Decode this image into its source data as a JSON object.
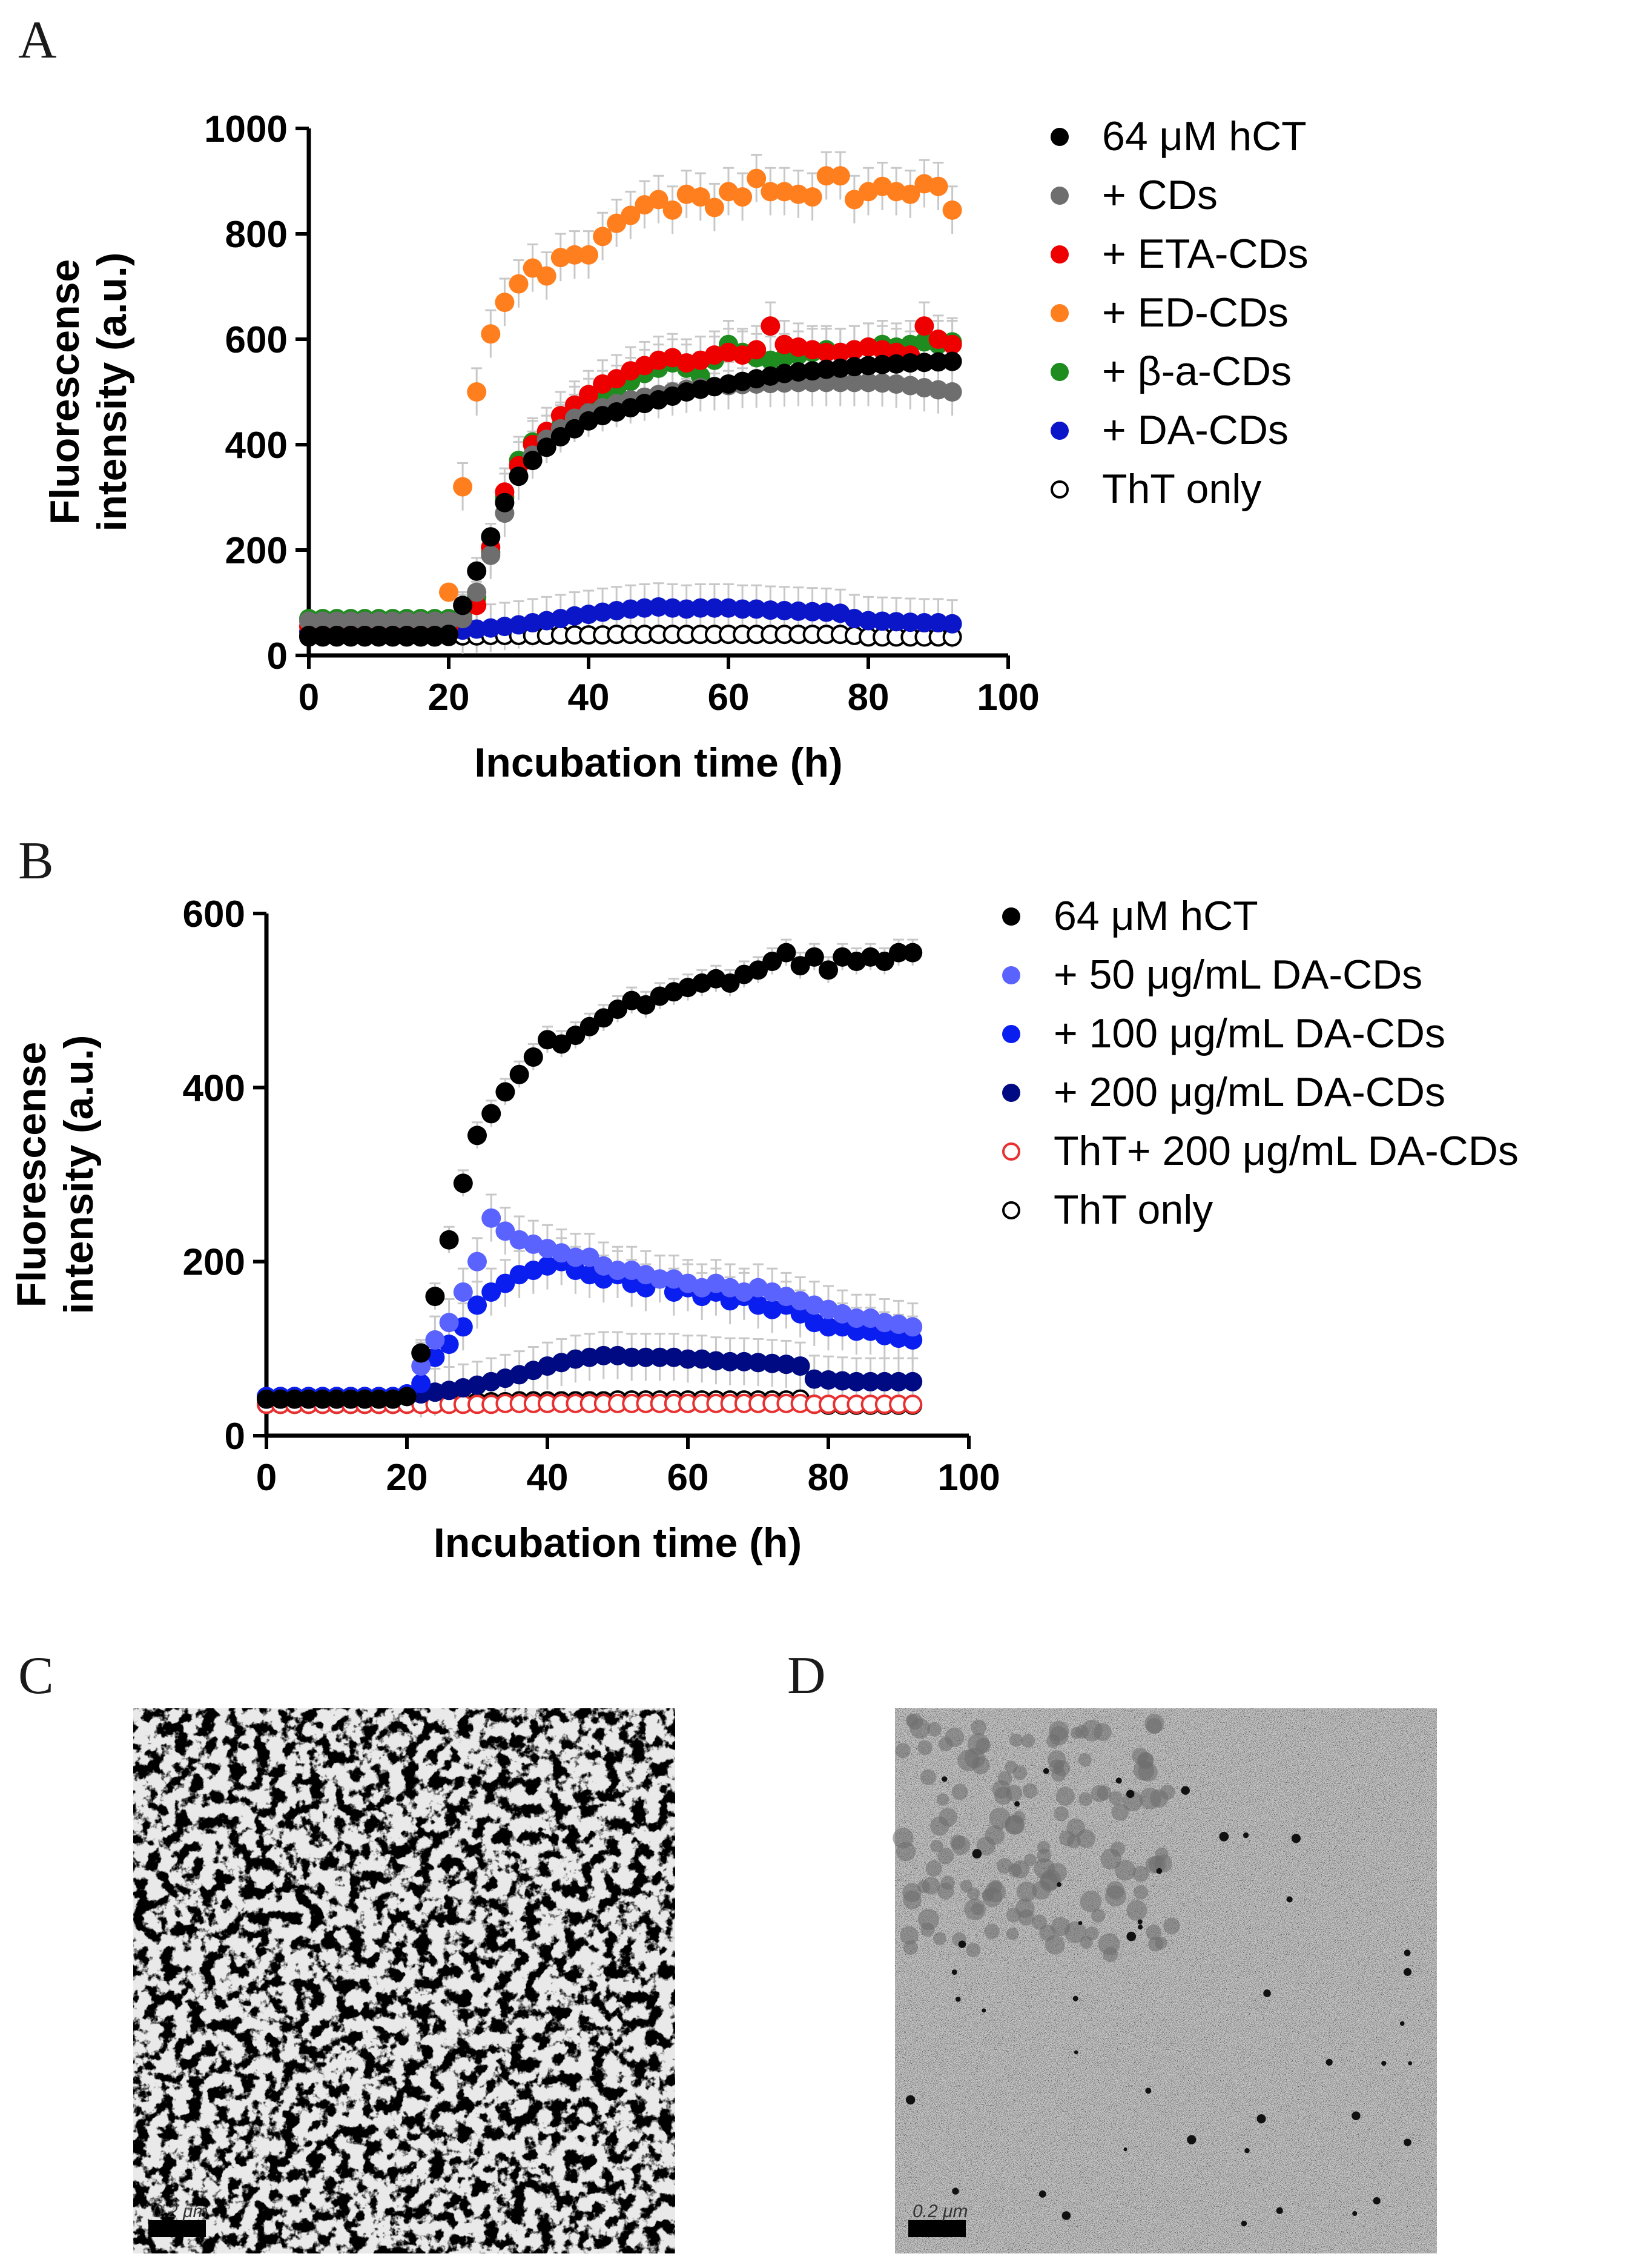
{
  "panels": {
    "a": {
      "letter": "A"
    },
    "b": {
      "letter": "B"
    },
    "c": {
      "letter": "C",
      "scale_label": "0.2 μm"
    },
    "d": {
      "letter": "D",
      "scale_label": "0.2 μm"
    }
  },
  "chart_data": [
    {
      "id": "A",
      "type": "scatter",
      "xlabel": "Incubation time (h)",
      "ylabel_lines": [
        "Fluorescense",
        "intensity (a.u.)"
      ],
      "xlim": [
        0,
        100
      ],
      "ylim": [
        0,
        1000
      ],
      "xticks": [
        0,
        20,
        40,
        60,
        80,
        100
      ],
      "yticks": [
        0,
        200,
        400,
        600,
        800,
        1000
      ],
      "legend_position": "right",
      "x": [
        0,
        2,
        4,
        6,
        8,
        10,
        12,
        14,
        16,
        18,
        20,
        22,
        24,
        26,
        28,
        30,
        32,
        34,
        36,
        38,
        40,
        42,
        44,
        46,
        48,
        50,
        52,
        54,
        56,
        58,
        60,
        62,
        64,
        66,
        68,
        70,
        72,
        74,
        76,
        78,
        80,
        82,
        84,
        86,
        88,
        90,
        92
      ],
      "series": [
        {
          "name": "64 μM hCT",
          "color": "#000000",
          "filled": true,
          "values": [
            38,
            38,
            38,
            38,
            38,
            38,
            38,
            38,
            38,
            38,
            40,
            95,
            160,
            225,
            290,
            340,
            370,
            395,
            415,
            430,
            445,
            455,
            462,
            470,
            478,
            485,
            492,
            500,
            505,
            510,
            515,
            520,
            525,
            530,
            535,
            538,
            540,
            543,
            545,
            548,
            550,
            552,
            553,
            555,
            556,
            557,
            558
          ]
        },
        {
          "name": "+ CDs",
          "color": "#6e6e6e",
          "filled": true,
          "values": [
            65,
            65,
            65,
            65,
            65,
            65,
            65,
            65,
            65,
            65,
            65,
            70,
            120,
            190,
            270,
            340,
            380,
            410,
            430,
            450,
            460,
            470,
            478,
            485,
            490,
            495,
            500,
            505,
            508,
            510,
            512,
            514,
            515,
            516,
            517,
            518,
            518,
            518,
            518,
            518,
            518,
            517,
            515,
            512,
            508,
            504,
            500
          ]
        },
        {
          "name": "+ ETA-CDs",
          "color": "#ee0000",
          "filled": true,
          "values": [
            55,
            55,
            55,
            55,
            55,
            55,
            55,
            55,
            55,
            55,
            55,
            70,
            95,
            205,
            310,
            360,
            400,
            425,
            455,
            475,
            495,
            515,
            525,
            540,
            550,
            560,
            565,
            555,
            560,
            570,
            575,
            570,
            580,
            625,
            590,
            585,
            580,
            575,
            575,
            580,
            585,
            580,
            575,
            570,
            625,
            600,
            590
          ]
        },
        {
          "name": "+ ED-CDs",
          "color": "#ff7f1e",
          "filled": true,
          "values": [
            55,
            55,
            55,
            55,
            55,
            55,
            55,
            55,
            55,
            55,
            120,
            320,
            500,
            610,
            670,
            705,
            735,
            720,
            755,
            760,
            760,
            795,
            820,
            835,
            855,
            865,
            845,
            875,
            870,
            850,
            880,
            870,
            905,
            880,
            880,
            875,
            870,
            910,
            910,
            865,
            880,
            890,
            880,
            875,
            895,
            890,
            845
          ]
        },
        {
          "name": "+ β-a-CDs",
          "color": "#1e8c1e",
          "filled": true,
          "values": [
            70,
            70,
            70,
            70,
            70,
            70,
            70,
            70,
            70,
            70,
            70,
            75,
            110,
            195,
            300,
            370,
            405,
            410,
            435,
            465,
            480,
            495,
            505,
            520,
            535,
            545,
            555,
            545,
            530,
            560,
            590,
            575,
            565,
            560,
            565,
            570,
            575,
            580,
            575,
            580,
            585,
            590,
            585,
            590,
            595,
            590,
            595
          ]
        },
        {
          "name": "+ DA-CDs",
          "color": "#0b16c8",
          "filled": true,
          "values": [
            45,
            45,
            45,
            45,
            45,
            45,
            45,
            45,
            45,
            45,
            45,
            48,
            50,
            52,
            55,
            58,
            62,
            66,
            70,
            75,
            78,
            82,
            85,
            88,
            90,
            92,
            90,
            88,
            90,
            90,
            90,
            88,
            88,
            86,
            85,
            84,
            83,
            82,
            80,
            70,
            66,
            65,
            64,
            63,
            62,
            62,
            60
          ]
        },
        {
          "name": "ThT only",
          "color": "#000000",
          "filled": false,
          "values": [
            35,
            35,
            35,
            35,
            35,
            35,
            35,
            35,
            35,
            35,
            36,
            37,
            37,
            38,
            38,
            38,
            38,
            38,
            39,
            39,
            39,
            39,
            40,
            40,
            40,
            40,
            40,
            40,
            40,
            40,
            40,
            40,
            40,
            40,
            40,
            40,
            40,
            40,
            40,
            38,
            35,
            35,
            35,
            35,
            35,
            35,
            35
          ]
        }
      ]
    },
    {
      "id": "B",
      "type": "scatter",
      "xlabel": "Incubation time (h)",
      "ylabel_lines": [
        "Fluorescense",
        "intensity (a.u.)"
      ],
      "xlim": [
        0,
        100
      ],
      "ylim": [
        0,
        600
      ],
      "xticks": [
        0,
        20,
        40,
        60,
        80,
        100
      ],
      "yticks": [
        0,
        200,
        400,
        600
      ],
      "legend_position": "right",
      "x": [
        0,
        2,
        4,
        6,
        8,
        10,
        12,
        14,
        16,
        18,
        20,
        22,
        24,
        26,
        28,
        30,
        32,
        34,
        36,
        38,
        40,
        42,
        44,
        46,
        48,
        50,
        52,
        54,
        56,
        58,
        60,
        62,
        64,
        66,
        68,
        70,
        72,
        74,
        76,
        78,
        80,
        82,
        84,
        86,
        88,
        90,
        92
      ],
      "series": [
        {
          "name": "64 μM hCT",
          "color": "#000000",
          "filled": true,
          "values": [
            42,
            42,
            42,
            42,
            42,
            42,
            42,
            42,
            42,
            42,
            45,
            95,
            160,
            225,
            290,
            345,
            370,
            395,
            415,
            435,
            455,
            450,
            460,
            470,
            480,
            490,
            500,
            495,
            505,
            510,
            515,
            520,
            525,
            520,
            530,
            535,
            545,
            555,
            540,
            550,
            535,
            550,
            545,
            550,
            545,
            555,
            555
          ]
        },
        {
          "name": "+ 50 μg/mL DA-CDs",
          "color": "#5b63ff",
          "filled": true,
          "values": [
            42,
            42,
            42,
            42,
            42,
            42,
            42,
            42,
            42,
            42,
            45,
            80,
            110,
            130,
            165,
            200,
            250,
            235,
            225,
            220,
            215,
            210,
            205,
            205,
            195,
            190,
            190,
            185,
            180,
            180,
            175,
            170,
            175,
            170,
            165,
            170,
            165,
            160,
            155,
            150,
            145,
            140,
            135,
            135,
            130,
            128,
            125
          ]
        },
        {
          "name": "+ 100 μg/mL DA-CDs",
          "color": "#0b1ef0",
          "filled": true,
          "values": [
            45,
            45,
            45,
            45,
            45,
            45,
            45,
            45,
            45,
            45,
            48,
            60,
            90,
            105,
            125,
            150,
            165,
            175,
            185,
            190,
            195,
            200,
            190,
            185,
            180,
            185,
            175,
            170,
            180,
            165,
            170,
            160,
            165,
            155,
            160,
            150,
            145,
            150,
            140,
            130,
            125,
            125,
            120,
            120,
            115,
            112,
            110
          ]
        },
        {
          "name": "+ 200 μg/mL DA-CDs",
          "color": "#000a82",
          "filled": true,
          "values": [
            45,
            45,
            45,
            45,
            45,
            45,
            45,
            45,
            45,
            45,
            45,
            48,
            50,
            52,
            55,
            58,
            62,
            66,
            70,
            75,
            80,
            84,
            88,
            90,
            92,
            92,
            90,
            90,
            90,
            90,
            88,
            88,
            86,
            85,
            85,
            84,
            83,
            82,
            80,
            65,
            64,
            63,
            62,
            62,
            62,
            62,
            62
          ]
        },
        {
          "name": "ThT+ 200 μg/mL DA-CDs",
          "color": "#e83030",
          "filled": false,
          "values": [
            36,
            36,
            36,
            36,
            36,
            36,
            36,
            36,
            36,
            36,
            36,
            36,
            36,
            36,
            36,
            36,
            36,
            37,
            37,
            37,
            37,
            37,
            37,
            37,
            37,
            37,
            37,
            37,
            37,
            37,
            37,
            37,
            37,
            37,
            37,
            37,
            37,
            37,
            37,
            36,
            36,
            36,
            36,
            36,
            36,
            36,
            36
          ]
        },
        {
          "name": "ThT only",
          "color": "#000000",
          "filled": false,
          "values": [
            36,
            36,
            36,
            36,
            36,
            36,
            36,
            36,
            36,
            36,
            37,
            37,
            38,
            38,
            38,
            39,
            39,
            39,
            40,
            40,
            40,
            40,
            40,
            40,
            40,
            41,
            41,
            41,
            41,
            41,
            41,
            41,
            41,
            41,
            41,
            41,
            41,
            41,
            42,
            36,
            35,
            35,
            35,
            35,
            35,
            35,
            35
          ]
        }
      ]
    }
  ]
}
